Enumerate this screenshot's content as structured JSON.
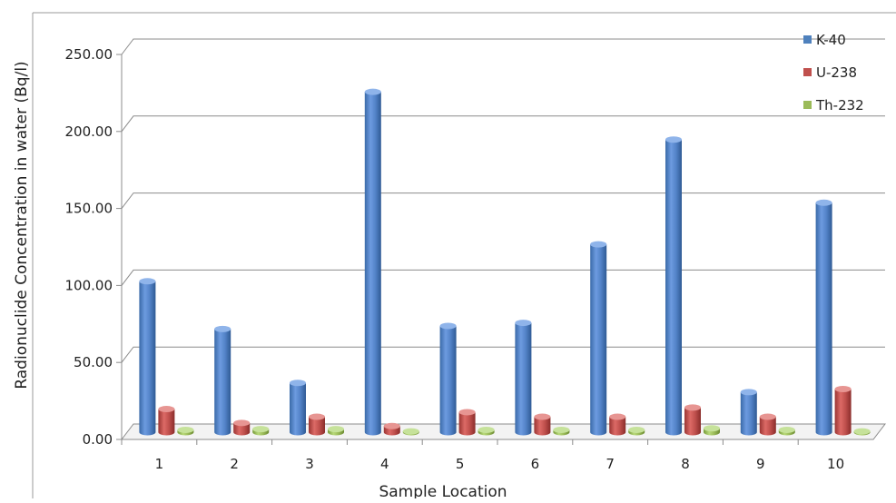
{
  "chart_data": {
    "type": "bar",
    "title": "",
    "xlabel": "Sample Location",
    "ylabel": "Radionuclide Concentration in water (Bq/l)",
    "categories": [
      "1",
      "2",
      "3",
      "4",
      "5",
      "6",
      "7",
      "8",
      "9",
      "10"
    ],
    "y_ticks": [
      "0.00",
      "50.00",
      "100.00",
      "150.00",
      "200.00",
      "250.00"
    ],
    "ylim": [
      0,
      250
    ],
    "grid": true,
    "legend_position": "top-right",
    "series": [
      {
        "name": "K-40",
        "color": "#4f81bd",
        "values": [
          98,
          67,
          32,
          221,
          69,
          71,
          122,
          190,
          26,
          149
        ]
      },
      {
        "name": "U-238",
        "color": "#c0504d",
        "values": [
          15,
          6,
          10,
          4,
          13,
          10,
          10,
          16,
          10,
          28
        ]
      },
      {
        "name": "Th-232",
        "color": "#9bbb59",
        "values": [
          1.5,
          2,
          2,
          0.5,
          1.5,
          1.5,
          1.5,
          2.5,
          1.5,
          0.5
        ]
      }
    ]
  }
}
